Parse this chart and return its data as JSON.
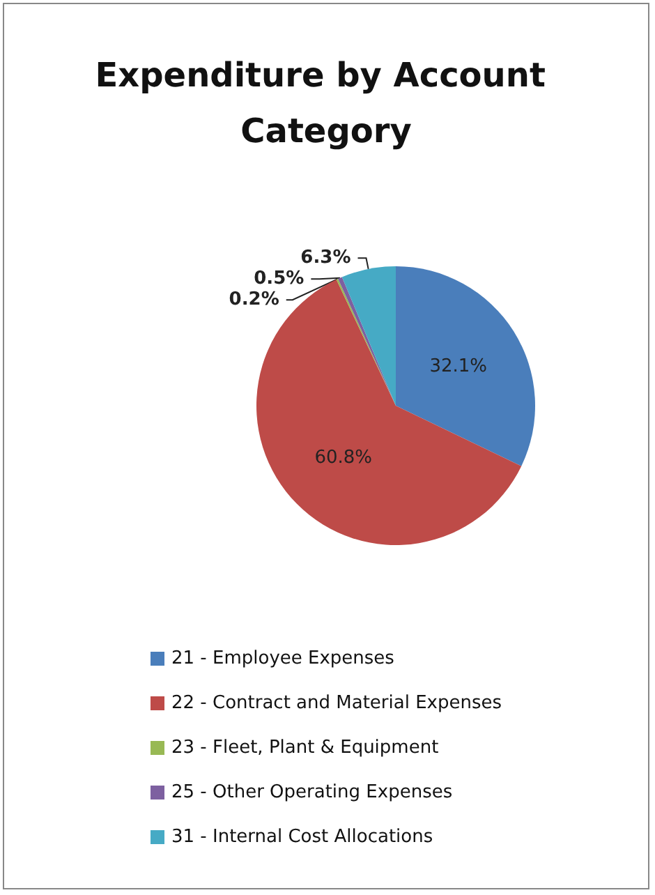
{
  "chart_data": {
    "type": "pie",
    "title": "Expenditure by Account Category",
    "categories": [
      "21 - Employee Expenses",
      "22 - Contract and Material Expenses",
      "23 - Fleet, Plant & Equipment",
      "25 - Other Operating Expenses",
      "31 - Internal Cost Allocations"
    ],
    "values": [
      32.1,
      60.8,
      0.2,
      0.5,
      6.3
    ],
    "value_labels": [
      "32.1%",
      "60.8%",
      "0.2%",
      "0.5%",
      "6.3%"
    ],
    "colors": [
      "#4a7ebb",
      "#be4b48",
      "#98b954",
      "#7d60a0",
      "#46aac5"
    ],
    "legend": "bottom"
  }
}
